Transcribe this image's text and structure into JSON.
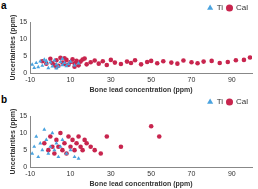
{
  "chart_data": [
    {
      "type": "scatter",
      "title": "a",
      "x_label": "Bone lead concentration (ppm)",
      "y_label": "Uncertainties (ppm)",
      "xlim": [
        -10,
        100
      ],
      "xticks": [
        -10,
        10,
        30,
        50,
        70,
        90
      ],
      "ylim": [
        0,
        15
      ],
      "yticks": [
        0,
        5,
        10,
        15
      ],
      "grid": false,
      "legend": "top-right",
      "series": [
        {
          "name": "Ti",
          "color": "#4aa3df",
          "marker": "triangle",
          "x": [
            -9,
            -7,
            -6,
            -5,
            -4,
            -3,
            -2,
            -1,
            0,
            1,
            2,
            3,
            4,
            5,
            6,
            7,
            8,
            9,
            10,
            12,
            14,
            -8,
            -2,
            3,
            6
          ],
          "values": [
            2.5,
            3.0,
            1.8,
            3.5,
            2.2,
            4.0,
            2.8,
            1.5,
            3.2,
            2.0,
            3.8,
            2.6,
            1.9,
            3.3,
            2.4,
            3.0,
            2.1,
            2.7,
            3.4,
            2.3,
            2.9,
            1.6,
            3.6,
            1.4,
            4.2
          ]
        },
        {
          "name": "Cal",
          "color": "#c8254e",
          "marker": "circle",
          "x": [
            -4,
            -2,
            0,
            1,
            2,
            3,
            4,
            5,
            6,
            7,
            8,
            9,
            10,
            11,
            12,
            13,
            14,
            15,
            16,
            18,
            20,
            22,
            24,
            26,
            28,
            30,
            32,
            35,
            38,
            40,
            42,
            45,
            48,
            50,
            53,
            56,
            60,
            63,
            66,
            70,
            73,
            76,
            80,
            84,
            88,
            92,
            96,
            99,
            3,
            7,
            12,
            17
          ],
          "values": [
            3.5,
            2.8,
            4.2,
            3.0,
            2.4,
            3.8,
            2.2,
            4.5,
            3.1,
            2.7,
            3.9,
            2.5,
            3.3,
            4.1,
            2.9,
            3.6,
            2.3,
            3.4,
            4.0,
            2.6,
            3.2,
            3.7,
            2.8,
            3.5,
            2.4,
            3.9,
            3.1,
            2.7,
            3.4,
            3.0,
            3.8,
            2.6,
            3.3,
            3.6,
            2.9,
            3.5,
            3.1,
            2.8,
            3.7,
            3.2,
            2.9,
            3.4,
            3.6,
            3.0,
            3.3,
            3.8,
            3.9,
            4.6,
            1.8,
            4.4,
            1.9,
            4.3
          ]
        }
      ]
    },
    {
      "type": "scatter",
      "title": "b",
      "x_label": "Bone lead concentration (ppm)",
      "y_label": "Uncertainties (ppm)",
      "xlim": [
        -10,
        100
      ],
      "xticks": [
        -10,
        10,
        30,
        50,
        70,
        90
      ],
      "ylim": [
        0,
        15
      ],
      "yticks": [
        0,
        5,
        10,
        15
      ],
      "grid": false,
      "legend": "top-right",
      "series": [
        {
          "name": "Ti",
          "color": "#4aa3df",
          "marker": "triangle",
          "x": [
            -9,
            -8,
            -7,
            -6,
            -5,
            -4,
            -3,
            -2,
            -1,
            0,
            1,
            2,
            3,
            4,
            5,
            6,
            8,
            10,
            12,
            14
          ],
          "values": [
            4,
            6,
            9,
            3,
            7,
            5,
            11,
            8,
            4,
            6,
            10,
            5,
            7,
            3,
            6,
            8,
            4,
            5,
            3,
            2.5
          ]
        },
        {
          "name": "Cal",
          "color": "#c8254e",
          "marker": "circle",
          "x": [
            -3,
            -1,
            0,
            1,
            2,
            3,
            4,
            5,
            6,
            7,
            8,
            9,
            10,
            11,
            12,
            13,
            14,
            15,
            16,
            17,
            18,
            20,
            22,
            25,
            28,
            35,
            50,
            54
          ],
          "values": [
            7,
            5,
            9,
            6,
            4,
            8,
            6,
            10,
            5,
            7,
            4,
            9,
            6,
            8,
            5,
            7,
            9,
            6,
            5,
            8,
            7,
            6,
            5,
            4,
            9,
            6,
            12,
            9
          ]
        }
      ]
    }
  ]
}
